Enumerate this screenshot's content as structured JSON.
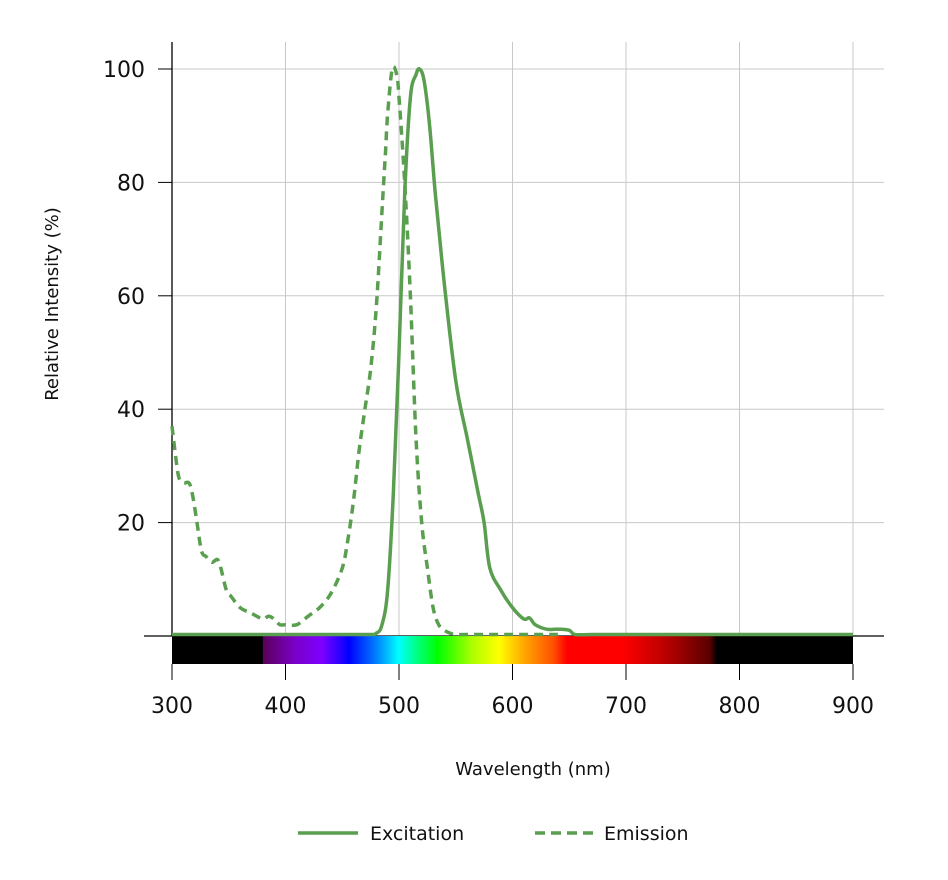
{
  "chart_data": {
    "type": "line",
    "title": "",
    "xlabel": "Wavelength (nm)",
    "ylabel": "Relative Intensity (%)",
    "xlim": [
      300,
      900
    ],
    "ylim": [
      0,
      100
    ],
    "x_ticks": [
      300,
      400,
      500,
      600,
      700,
      800,
      900
    ],
    "y_ticks": [
      20,
      40,
      60,
      80,
      100
    ],
    "grid": true,
    "legend_position": "bottom",
    "line_color": "#5a9e4f",
    "series": [
      {
        "name": "Excitation",
        "style": "solid",
        "x": [
          300,
          400,
          470,
          480,
          485,
          490,
          495,
          500,
          505,
          510,
          515,
          518,
          522,
          527,
          532,
          540,
          550,
          560,
          570,
          575,
          580,
          590,
          600,
          610,
          615,
          620,
          630,
          640,
          650,
          655,
          670,
          700,
          800,
          900
        ],
        "values": [
          0,
          0,
          0,
          0.5,
          2,
          8,
          25,
          50,
          78,
          95,
          99,
          100,
          98,
          90,
          78,
          62,
          45,
          35,
          25,
          20,
          12,
          8,
          5,
          3,
          3.2,
          2,
          1.2,
          1.2,
          1,
          0.2,
          0,
          0,
          0,
          0
        ]
      },
      {
        "name": "Emission",
        "style": "dashed",
        "x": [
          300,
          303,
          306,
          310,
          315,
          318,
          322,
          326,
          330,
          335,
          340,
          343,
          348,
          352,
          360,
          370,
          380,
          385,
          390,
          395,
          400,
          410,
          420,
          430,
          440,
          450,
          455,
          460,
          465,
          470,
          475,
          480,
          485,
          488,
          490,
          494,
          498,
          500,
          505,
          510,
          515,
          520,
          525,
          530,
          535,
          540,
          545,
          550,
          560,
          600,
          640
        ],
        "values": [
          37,
          32,
          28,
          27,
          27,
          25,
          20,
          15,
          14,
          13,
          13.5,
          12,
          8,
          7,
          5,
          4,
          3,
          3.5,
          3,
          2,
          2,
          2,
          3.5,
          5,
          7.5,
          12,
          17,
          24,
          33,
          40,
          47,
          58,
          75,
          85,
          92,
          100,
          99,
          95,
          80,
          60,
          35,
          20,
          12,
          5,
          2,
          1,
          0.5,
          0,
          0,
          0,
          0
        ]
      }
    ],
    "spectrum_bar": {
      "range_nm": [
        300,
        900
      ],
      "visible_range_nm": [
        380,
        780
      ]
    }
  },
  "legend": {
    "items": [
      {
        "label": "Excitation",
        "style": "solid"
      },
      {
        "label": "Emission",
        "style": "dashed"
      }
    ]
  }
}
